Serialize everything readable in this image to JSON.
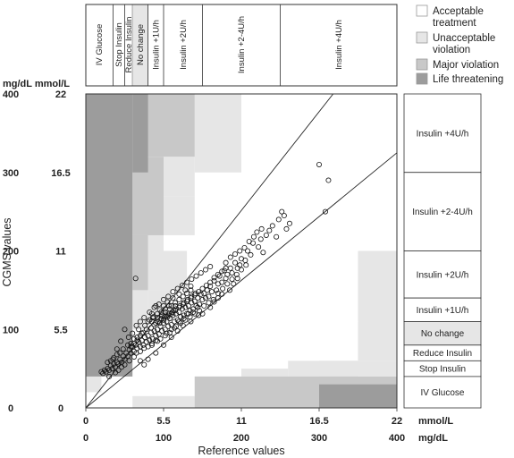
{
  "chart_data": {
    "type": "scatter",
    "xlabel": "Reference values",
    "ylabel": "CGMS values",
    "xlim": [
      0,
      400
    ],
    "ylim": [
      0,
      400
    ],
    "unit_labels": {
      "x_mmol": "mmol/L",
      "x_mgdl": "mg/dL",
      "y_header": "mg/dL mmol/L"
    },
    "x_ticks_mgdl": [
      "0",
      "100",
      "200",
      "300",
      "400"
    ],
    "x_ticks_mmol": [
      "0",
      "5.5",
      "11",
      "16.5",
      "22"
    ],
    "y_ticks_mgdl": [
      "0",
      "100",
      "200",
      "300",
      "400"
    ],
    "y_ticks_mmol": [
      "0",
      "5.5",
      "11",
      "16.5",
      "22"
    ],
    "tick_values": [
      0,
      100,
      200,
      300,
      400
    ],
    "colors": {
      "acceptable": "#ffffff",
      "unacceptable": "#e6e6e6",
      "major": "#c8c8c8",
      "life": "#9c9c9c"
    },
    "legend": {
      "placement": "top-right",
      "entries": [
        {
          "label_lines": [
            "Acceptable",
            "treatment"
          ],
          "color": "#ffffff"
        },
        {
          "label_lines": [
            "Unacceptable",
            "violation"
          ],
          "color": "#e6e6e6"
        },
        {
          "label_lines": [
            "Major violation"
          ],
          "color": "#c8c8c8"
        },
        {
          "label_lines": [
            "Life threatening"
          ],
          "color": "#9c9c9c"
        }
      ]
    },
    "top_categories": [
      {
        "label": "IV Glucose",
        "from": 0,
        "to": 35
      },
      {
        "label": "Stop Insulin",
        "from": 35,
        "to": 50
      },
      {
        "label": "Reduce Insulin",
        "from": 50,
        "to": 60
      },
      {
        "label": "No change",
        "from": 60,
        "to": 80,
        "shaded": true
      },
      {
        "label": "Insulin +1U/h",
        "from": 80,
        "to": 100
      },
      {
        "label": "Insulin +2U/h",
        "from": 100,
        "to": 150
      },
      {
        "label": "Insulin +2-4U/h",
        "from": 150,
        "to": 250
      },
      {
        "label": "Insulin +4U/h",
        "from": 250,
        "to": 400
      }
    ],
    "right_categories": [
      {
        "label": "Insulin +4U/h",
        "from": 300,
        "to": 400
      },
      {
        "label": "Insulin +2-4U/h",
        "from": 200,
        "to": 300
      },
      {
        "label": "Insulin +2U/h",
        "from": 140,
        "to": 200
      },
      {
        "label": "Insulin +1U/h",
        "from": 110,
        "to": 140
      },
      {
        "label": "No change",
        "from": 80,
        "to": 110,
        "shaded": true
      },
      {
        "label": "Reduce Insulin",
        "from": 60,
        "to": 80
      },
      {
        "label": "Stop Insulin",
        "from": 40,
        "to": 60
      },
      {
        "label": "IV Glucose",
        "from": 0,
        "to": 40
      }
    ],
    "zones": [
      {
        "x0": 0,
        "x1": 60,
        "y0": 40,
        "y1": 400,
        "level": "life"
      },
      {
        "x0": 60,
        "x1": 80,
        "y0": 300,
        "y1": 400,
        "level": "life"
      },
      {
        "x0": 60,
        "x1": 140,
        "y0": 320,
        "y1": 400,
        "level": "major"
      },
      {
        "x0": 140,
        "x1": 200,
        "y0": 300,
        "y1": 400,
        "level": "unacceptable"
      },
      {
        "x0": 60,
        "x1": 100,
        "y0": 220,
        "y1": 320,
        "level": "major"
      },
      {
        "x0": 100,
        "x1": 140,
        "y0": 270,
        "y1": 320,
        "level": "unacceptable"
      },
      {
        "x0": 100,
        "x1": 140,
        "y0": 220,
        "y1": 270,
        "level": "unacceptable"
      },
      {
        "x0": 60,
        "x1": 80,
        "y0": 150,
        "y1": 220,
        "level": "major"
      },
      {
        "x0": 80,
        "x1": 100,
        "y0": 150,
        "y1": 220,
        "level": "unacceptable"
      },
      {
        "x0": 100,
        "x1": 130,
        "y0": 150,
        "y1": 200,
        "level": "unacceptable"
      },
      {
        "x0": 60,
        "x1": 80,
        "y0": 100,
        "y1": 150,
        "level": "unacceptable"
      },
      {
        "x0": 80,
        "x1": 110,
        "y0": 110,
        "y1": 150,
        "level": "unacceptable"
      },
      {
        "x0": 0,
        "x1": 20,
        "y0": 20,
        "y1": 40,
        "level": "unacceptable"
      },
      {
        "x0": 60,
        "x1": 200,
        "y0": 0,
        "y1": 15,
        "level": "unacceptable"
      },
      {
        "x0": 140,
        "x1": 300,
        "y0": 0,
        "y1": 40,
        "level": "unacceptable"
      },
      {
        "x0": 200,
        "x1": 260,
        "y0": 40,
        "y1": 50,
        "level": "unacceptable"
      },
      {
        "x0": 260,
        "x1": 400,
        "y0": 40,
        "y1": 60,
        "level": "unacceptable"
      },
      {
        "x0": 350,
        "x1": 400,
        "y0": 60,
        "y1": 110,
        "level": "unacceptable"
      },
      {
        "x0": 140,
        "x1": 300,
        "y0": 0,
        "y1": 40,
        "level": "major"
      },
      {
        "x0": 300,
        "x1": 400,
        "y0": 0,
        "y1": 40,
        "level": "major"
      },
      {
        "x0": 300,
        "x1": 350,
        "y0": 40,
        "y1": 60,
        "level": "unacceptable"
      },
      {
        "x0": 400,
        "x1": 400,
        "y0": 0,
        "y1": 0,
        "level": "unacceptable"
      },
      {
        "x0": 300,
        "x1": 400,
        "y0": 0,
        "y1": 30,
        "level": "life"
      },
      {
        "x0": 350,
        "x1": 400,
        "y0": 110,
        "y1": 200,
        "level": "unacceptable"
      }
    ],
    "reference_lines": [
      {
        "x0": 0,
        "y0": 0,
        "x1": 318,
        "y1": 400
      },
      {
        "x0": 0,
        "y0": 0,
        "x1": 400,
        "y1": 325
      }
    ],
    "points": [
      [
        300,
        310
      ],
      [
        312,
        290
      ],
      [
        308,
        250
      ],
      [
        255,
        245
      ],
      [
        258,
        228
      ],
      [
        262,
        235
      ],
      [
        245,
        218
      ],
      [
        240,
        232
      ],
      [
        232,
        220
      ],
      [
        225,
        215
      ],
      [
        228,
        198
      ],
      [
        222,
        205
      ],
      [
        215,
        210
      ],
      [
        212,
        195
      ],
      [
        208,
        200
      ],
      [
        205,
        188
      ],
      [
        200,
        190
      ],
      [
        198,
        182
      ],
      [
        195,
        178
      ],
      [
        192,
        185
      ],
      [
        188,
        172
      ],
      [
        186,
        178
      ],
      [
        182,
        170
      ],
      [
        180,
        165
      ],
      [
        178,
        175
      ],
      [
        175,
        160
      ],
      [
        172,
        168
      ],
      [
        170,
        158
      ],
      [
        168,
        150
      ],
      [
        165,
        162
      ],
      [
        162,
        148
      ],
      [
        160,
        155
      ],
      [
        158,
        142
      ],
      [
        156,
        150
      ],
      [
        154,
        140
      ],
      [
        152,
        146
      ],
      [
        150,
        138
      ],
      [
        148,
        145
      ],
      [
        146,
        132
      ],
      [
        144,
        140
      ],
      [
        142,
        130
      ],
      [
        140,
        136
      ],
      [
        138,
        126
      ],
      [
        136,
        134
      ],
      [
        134,
        124
      ],
      [
        132,
        130
      ],
      [
        130,
        120
      ],
      [
        128,
        128
      ],
      [
        126,
        118
      ],
      [
        124,
        126
      ],
      [
        122,
        116
      ],
      [
        120,
        122
      ],
      [
        118,
        112
      ],
      [
        116,
        120
      ],
      [
        114,
        110
      ],
      [
        112,
        118
      ],
      [
        110,
        106
      ],
      [
        108,
        114
      ],
      [
        106,
        104
      ],
      [
        104,
        110
      ],
      [
        102,
        100
      ],
      [
        100,
        108
      ],
      [
        98,
        98
      ],
      [
        96,
        104
      ],
      [
        94,
        94
      ],
      [
        92,
        100
      ],
      [
        90,
        92
      ],
      [
        88,
        98
      ],
      [
        86,
        88
      ],
      [
        84,
        96
      ],
      [
        82,
        86
      ],
      [
        80,
        92
      ],
      [
        78,
        84
      ],
      [
        76,
        90
      ],
      [
        74,
        80
      ],
      [
        72,
        86
      ],
      [
        70,
        78
      ],
      [
        68,
        84
      ],
      [
        66,
        76
      ],
      [
        64,
        80
      ],
      [
        62,
        72
      ],
      [
        60,
        78
      ],
      [
        58,
        70
      ],
      [
        56,
        74
      ],
      [
        54,
        66
      ],
      [
        52,
        70
      ],
      [
        50,
        62
      ],
      [
        48,
        66
      ],
      [
        46,
        58
      ],
      [
        44,
        62
      ],
      [
        42,
        56
      ],
      [
        40,
        58
      ],
      [
        38,
        52
      ],
      [
        36,
        56
      ],
      [
        34,
        50
      ],
      [
        32,
        54
      ],
      [
        30,
        48
      ],
      [
        28,
        50
      ],
      [
        26,
        46
      ],
      [
        24,
        48
      ],
      [
        22,
        44
      ],
      [
        20,
        46
      ],
      [
        64,
        165
      ],
      [
        55,
        90
      ],
      [
        45,
        85
      ],
      [
        50,
        100
      ],
      [
        40,
        75
      ],
      [
        35,
        62
      ],
      [
        70,
        60
      ],
      [
        75,
        55
      ],
      [
        80,
        62
      ],
      [
        90,
        70
      ],
      [
        100,
        80
      ],
      [
        110,
        90
      ],
      [
        118,
        98
      ],
      [
        125,
        105
      ],
      [
        135,
        110
      ],
      [
        145,
        118
      ],
      [
        150,
        120
      ],
      [
        160,
        128
      ],
      [
        165,
        135
      ],
      [
        170,
        140
      ],
      [
        175,
        145
      ],
      [
        185,
        150
      ],
      [
        190,
        158
      ],
      [
        195,
        165
      ],
      [
        90,
        130
      ],
      [
        85,
        120
      ],
      [
        95,
        125
      ],
      [
        100,
        130
      ],
      [
        105,
        135
      ],
      [
        112,
        140
      ],
      [
        120,
        145
      ],
      [
        128,
        150
      ],
      [
        135,
        155
      ],
      [
        85,
        110
      ],
      [
        92,
        115
      ],
      [
        98,
        118
      ],
      [
        102,
        122
      ],
      [
        108,
        126
      ],
      [
        115,
        130
      ],
      [
        72,
        95
      ],
      [
        68,
        100
      ],
      [
        76,
        105
      ],
      [
        80,
        110
      ],
      [
        86,
        115
      ],
      [
        66,
        90
      ],
      [
        62,
        88
      ],
      [
        58,
        82
      ],
      [
        54,
        80
      ],
      [
        48,
        75
      ],
      [
        44,
        70
      ],
      [
        40,
        68
      ],
      [
        36,
        64
      ],
      [
        32,
        60
      ],
      [
        28,
        58
      ],
      [
        60,
        95
      ],
      [
        65,
        105
      ],
      [
        70,
        110
      ],
      [
        75,
        115
      ],
      [
        82,
        122
      ],
      [
        88,
        128
      ],
      [
        94,
        132
      ],
      [
        100,
        138
      ],
      [
        106,
        142
      ],
      [
        112,
        148
      ],
      [
        118,
        152
      ],
      [
        124,
        156
      ],
      [
        130,
        160
      ],
      [
        136,
        164
      ],
      [
        142,
        168
      ],
      [
        148,
        172
      ],
      [
        154,
        176
      ],
      [
        160,
        180
      ],
      [
        104,
        95
      ],
      [
        110,
        100
      ],
      [
        116,
        104
      ],
      [
        122,
        108
      ],
      [
        128,
        112
      ],
      [
        134,
        116
      ],
      [
        140,
        120
      ],
      [
        146,
        124
      ],
      [
        152,
        130
      ],
      [
        158,
        134
      ],
      [
        164,
        138
      ],
      [
        170,
        146
      ],
      [
        176,
        152
      ],
      [
        182,
        158
      ],
      [
        188,
        164
      ],
      [
        194,
        170
      ],
      [
        200,
        176
      ],
      [
        206,
        182
      ],
      [
        180,
        185
      ],
      [
        186,
        192
      ],
      [
        192,
        196
      ],
      [
        198,
        200
      ],
      [
        204,
        204
      ],
      [
        210,
        212
      ],
      [
        216,
        218
      ],
      [
        220,
        224
      ],
      [
        226,
        228
      ],
      [
        248,
        240
      ],
      [
        252,
        250
      ],
      [
        236,
        226
      ],
      [
        85,
        80
      ],
      [
        92,
        85
      ],
      [
        96,
        88
      ],
      [
        102,
        92
      ],
      [
        108,
        96
      ],
      [
        114,
        102
      ],
      [
        65,
        70
      ],
      [
        70,
        72
      ],
      [
        75,
        76
      ],
      [
        80,
        78
      ],
      [
        85,
        82
      ],
      [
        90,
        86
      ],
      [
        30,
        40
      ],
      [
        38,
        45
      ],
      [
        42,
        48
      ],
      [
        46,
        52
      ],
      [
        50,
        55
      ],
      [
        56,
        60
      ],
      [
        62,
        65
      ],
      [
        120,
        110
      ],
      [
        126,
        114
      ],
      [
        132,
        120
      ],
      [
        138,
        122
      ],
      [
        144,
        128
      ],
      [
        95,
        108
      ],
      [
        100,
        112
      ],
      [
        105,
        116
      ],
      [
        110,
        120
      ],
      [
        115,
        124
      ],
      [
        120,
        128
      ],
      [
        125,
        132
      ],
      [
        130,
        136
      ],
      [
        135,
        140
      ],
      [
        140,
        144
      ],
      [
        145,
        148
      ],
      [
        150,
        152
      ],
      [
        155,
        156
      ],
      [
        160,
        160
      ],
      [
        165,
        166
      ],
      [
        170,
        170
      ],
      [
        175,
        174
      ],
      [
        180,
        178
      ],
      [
        88,
        106
      ],
      [
        93,
        110
      ],
      [
        97,
        114
      ],
      [
        103,
        118
      ],
      [
        107,
        120
      ],
      [
        113,
        124
      ],
      [
        78,
        100
      ],
      [
        74,
        96
      ],
      [
        70,
        92
      ],
      [
        66,
        86
      ],
      [
        62,
        82
      ],
      [
        58,
        78
      ],
      [
        84,
        102
      ],
      [
        90,
        108
      ],
      [
        96,
        112
      ],
      [
        101,
        116
      ],
      [
        106,
        118
      ],
      [
        111,
        122
      ],
      [
        116,
        126
      ],
      [
        121,
        130
      ],
      [
        126,
        134
      ],
      [
        131,
        138
      ],
      [
        136,
        142
      ],
      [
        141,
        146
      ],
      [
        110,
        130
      ],
      [
        115,
        134
      ],
      [
        120,
        138
      ],
      [
        125,
        142
      ],
      [
        130,
        146
      ],
      [
        135,
        150
      ],
      [
        82,
        112
      ],
      [
        87,
        116
      ],
      [
        92,
        120
      ],
      [
        97,
        122
      ],
      [
        102,
        126
      ],
      [
        107,
        130
      ]
    ]
  }
}
